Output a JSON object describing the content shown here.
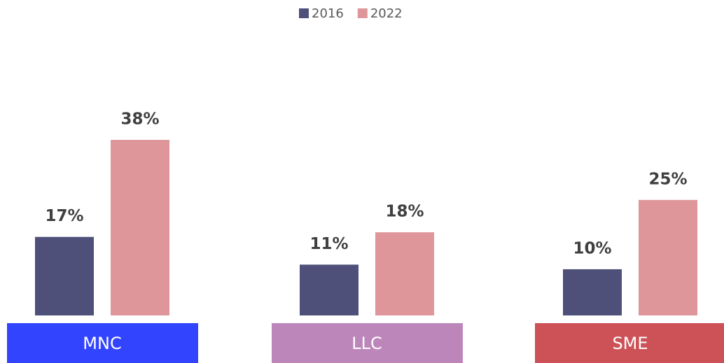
{
  "chart_data": {
    "type": "bar",
    "categories": [
      "MNC",
      "LLC",
      "SME"
    ],
    "category_colors": [
      "#3344ff",
      "#bd86bb",
      "#cc5257"
    ],
    "series": [
      {
        "name": "2016",
        "color": "#4f507a",
        "values": [
          17,
          11,
          10
        ],
        "value_labels": [
          "17%",
          "11%",
          "10%"
        ]
      },
      {
        "name": "2022",
        "color": "#de969a",
        "values": [
          38,
          18,
          25
        ],
        "value_labels": [
          "38%",
          "18%",
          "25%"
        ]
      }
    ],
    "legend": "top"
  }
}
